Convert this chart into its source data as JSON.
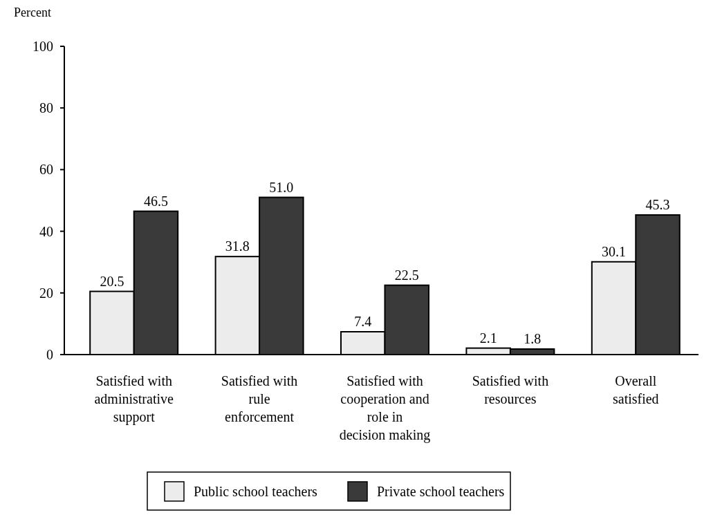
{
  "chart_data": {
    "type": "bar",
    "ylabel": "Percent",
    "categories": [
      "Satisfied with administrative support",
      "Satisfied with rule enforcement",
      "Satisfied with cooperation and role in decision making",
      "Satisfied with resources",
      "Overall satisfied"
    ],
    "series": [
      {
        "name": "Public school teachers",
        "color": "#ececec",
        "values": [
          20.5,
          31.8,
          7.4,
          2.1,
          30.1
        ]
      },
      {
        "name": "Private school teachers",
        "color": "#3a3a3a",
        "values": [
          46.5,
          51.0,
          22.5,
          1.8,
          45.3
        ]
      }
    ],
    "value_labels": [
      [
        "20.5",
        "31.8",
        "7.4",
        "2.1",
        "30.1"
      ],
      [
        "46.5",
        "51.0",
        "22.5",
        "1.8",
        "45.3"
      ]
    ],
    "ylim": [
      0,
      100
    ],
    "yticks": [
      0,
      20,
      40,
      60,
      80,
      100
    ],
    "grid": false,
    "legend": "bottom"
  }
}
